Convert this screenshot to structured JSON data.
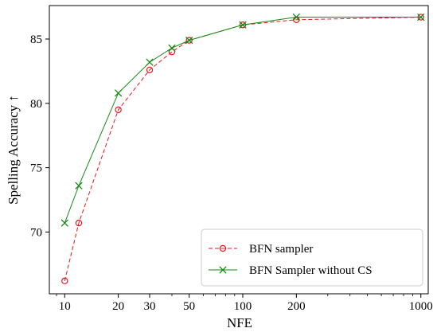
{
  "chart_data": {
    "type": "line",
    "xlabel": "NFE",
    "ylabel": "Spelling Accuracy ↑",
    "xscale": "log",
    "xlim": [
      8.2,
      1100
    ],
    "ylim": [
      65.2,
      87.6
    ],
    "grid": false,
    "legend_placement": "bottom-right",
    "x_ticks": [
      10,
      20,
      30,
      50,
      100,
      200,
      1000
    ],
    "x_tick_labels": [
      "10",
      "20",
      "30",
      "50",
      "100",
      "200",
      "1000"
    ],
    "y_ticks": [
      70,
      75,
      80,
      85
    ],
    "y_tick_labels": [
      "70",
      "75",
      "80",
      "85"
    ],
    "series": [
      {
        "name": "BFN sampler",
        "color": "#e8171c",
        "line_style": "dashed",
        "marker": "circle",
        "x": [
          10,
          12,
          20,
          30,
          40,
          50,
          100,
          200,
          1000
        ],
        "y": [
          66.2,
          70.7,
          79.5,
          82.6,
          84.0,
          84.9,
          86.1,
          86.5,
          86.7
        ]
      },
      {
        "name": "BFN Sampler without CS",
        "color": "#138a13",
        "line_style": "solid",
        "marker": "x",
        "x": [
          10,
          12,
          20,
          30,
          40,
          50,
          100,
          200,
          1000
        ],
        "y": [
          70.7,
          73.6,
          80.8,
          83.2,
          84.3,
          84.9,
          86.1,
          86.7,
          86.7
        ]
      }
    ]
  }
}
